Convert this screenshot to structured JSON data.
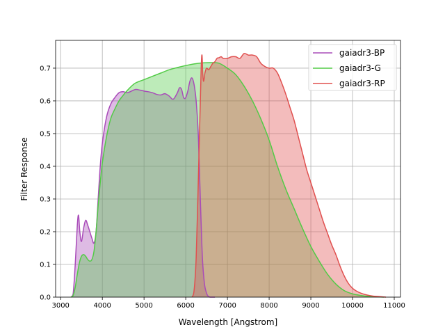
{
  "chart_data": {
    "type": "area",
    "title": "",
    "xlabel": "Wavelength [Angstrom]",
    "ylabel": "Filter Response",
    "xlim": [
      2880,
      11150
    ],
    "ylim": [
      0,
      0.785
    ],
    "xticks": [
      3000,
      4000,
      5000,
      6000,
      7000,
      8000,
      9000,
      10000,
      11000
    ],
    "yticks": [
      0.0,
      0.1,
      0.2,
      0.3,
      0.4,
      0.5,
      0.6,
      0.7
    ],
    "xtick_labels": [
      "3000",
      "4000",
      "5000",
      "6000",
      "7000",
      "8000",
      "9000",
      "10000",
      "11000"
    ],
    "ytick_labels": [
      "0.0",
      "0.1",
      "0.2",
      "0.3",
      "0.4",
      "0.5",
      "0.6",
      "0.7"
    ],
    "grid": true,
    "legend_position": "top-right",
    "series": [
      {
        "name": "gaiadr3-BP",
        "color": "#a94bb9",
        "fill_color": "#a94bb9",
        "x": [
          3250,
          3300,
          3350,
          3400,
          3430,
          3460,
          3500,
          3550,
          3600,
          3650,
          3700,
          3750,
          3800,
          3850,
          3900,
          3950,
          4000,
          4100,
          4200,
          4300,
          4400,
          4500,
          4600,
          4700,
          4800,
          4900,
          5000,
          5100,
          5200,
          5300,
          5400,
          5500,
          5600,
          5700,
          5800,
          5850,
          5900,
          5950,
          6000,
          6050,
          6100,
          6150,
          6200,
          6250,
          6300,
          6350,
          6400,
          6450,
          6500,
          6530,
          6560,
          6580,
          6600,
          6650,
          6700
        ],
        "y": [
          0.0,
          0.01,
          0.1,
          0.22,
          0.25,
          0.2,
          0.17,
          0.21,
          0.235,
          0.22,
          0.2,
          0.18,
          0.165,
          0.2,
          0.3,
          0.4,
          0.47,
          0.55,
          0.59,
          0.61,
          0.625,
          0.628,
          0.625,
          0.63,
          0.635,
          0.633,
          0.63,
          0.628,
          0.625,
          0.62,
          0.618,
          0.622,
          0.615,
          0.605,
          0.625,
          0.64,
          0.635,
          0.61,
          0.61,
          0.63,
          0.66,
          0.67,
          0.65,
          0.6,
          0.5,
          0.3,
          0.12,
          0.04,
          0.012,
          0.004,
          0.001,
          0.0,
          0.0,
          0.0,
          0.0
        ]
      },
      {
        "name": "gaiadr3-G",
        "color": "#52cb46",
        "fill_color": "#52cb46",
        "x": [
          3250,
          3300,
          3350,
          3400,
          3450,
          3500,
          3550,
          3600,
          3650,
          3700,
          3750,
          3800,
          3850,
          3900,
          3950,
          4000,
          4100,
          4200,
          4300,
          4400,
          4500,
          4600,
          4700,
          4800,
          5000,
          5200,
          5400,
          5600,
          5800,
          6000,
          6200,
          6400,
          6600,
          6800,
          7000,
          7200,
          7400,
          7600,
          7800,
          8000,
          8200,
          8400,
          8600,
          8800,
          9000,
          9200,
          9400,
          9600,
          9800,
          10000,
          10200,
          10400,
          10600,
          10750
        ],
        "y": [
          0.0,
          0.005,
          0.03,
          0.07,
          0.105,
          0.125,
          0.13,
          0.125,
          0.115,
          0.11,
          0.115,
          0.14,
          0.2,
          0.28,
          0.35,
          0.41,
          0.49,
          0.545,
          0.575,
          0.6,
          0.617,
          0.632,
          0.645,
          0.655,
          0.665,
          0.675,
          0.685,
          0.695,
          0.702,
          0.708,
          0.713,
          0.716,
          0.717,
          0.715,
          0.7,
          0.68,
          0.645,
          0.6,
          0.545,
          0.48,
          0.4,
          0.33,
          0.27,
          0.21,
          0.155,
          0.11,
          0.07,
          0.04,
          0.02,
          0.01,
          0.005,
          0.002,
          0.001,
          0.0
        ]
      },
      {
        "name": "gaiadr3-RP",
        "color": "#e0504f",
        "fill_color": "#e0504f",
        "x": [
          6150,
          6200,
          6250,
          6300,
          6340,
          6370,
          6390,
          6410,
          6430,
          6460,
          6500,
          6550,
          6600,
          6650,
          6700,
          6750,
          6800,
          6850,
          6900,
          7000,
          7100,
          7200,
          7300,
          7400,
          7500,
          7600,
          7700,
          7800,
          7900,
          8000,
          8100,
          8200,
          8300,
          8400,
          8500,
          8600,
          8700,
          8800,
          8900,
          9000,
          9100,
          9200,
          9300,
          9400,
          9500,
          9600,
          9700,
          9800,
          9900,
          10000,
          10100,
          10200,
          10300,
          10400,
          10500,
          10600,
          10700,
          10800
        ],
        "y": [
          0.0,
          0.02,
          0.12,
          0.35,
          0.55,
          0.7,
          0.74,
          0.68,
          0.66,
          0.685,
          0.7,
          0.695,
          0.705,
          0.715,
          0.72,
          0.73,
          0.732,
          0.735,
          0.73,
          0.73,
          0.735,
          0.735,
          0.73,
          0.745,
          0.74,
          0.74,
          0.735,
          0.715,
          0.705,
          0.7,
          0.7,
          0.685,
          0.655,
          0.62,
          0.58,
          0.54,
          0.49,
          0.44,
          0.39,
          0.35,
          0.31,
          0.27,
          0.23,
          0.195,
          0.16,
          0.13,
          0.095,
          0.065,
          0.042,
          0.027,
          0.018,
          0.012,
          0.008,
          0.005,
          0.003,
          0.002,
          0.001,
          0.0
        ]
      }
    ]
  }
}
